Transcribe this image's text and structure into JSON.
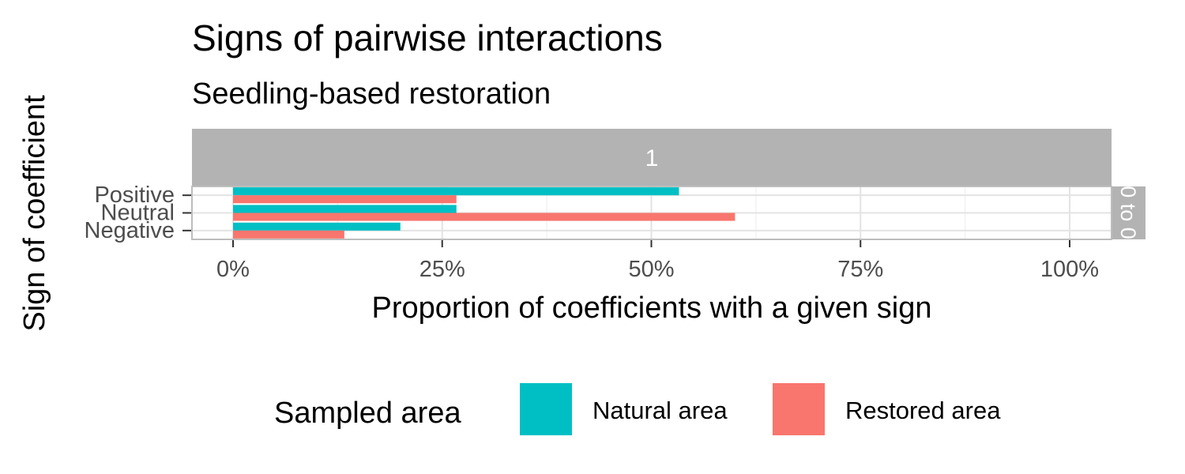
{
  "chart_data": {
    "type": "bar",
    "orientation": "horizontal",
    "title": "Signs of pairwise interactions",
    "subtitle": "Seedling-based restoration",
    "xlabel": "Proportion of coefficients with a given sign",
    "ylabel": "Sign of coefficient",
    "facet_top": "1",
    "facet_right": "0 to 0",
    "categories": [
      "Positive",
      "Neutral",
      "Negative"
    ],
    "xlim": [
      0,
      1
    ],
    "xticks": [
      0,
      0.25,
      0.5,
      0.75,
      1.0
    ],
    "xtick_labels": [
      "0%",
      "25%",
      "50%",
      "75%",
      "100%"
    ],
    "grid": true,
    "series": [
      {
        "name": "Natural area",
        "color": "#00BFC4",
        "values": [
          0.533,
          0.267,
          0.2
        ]
      },
      {
        "name": "Restored area",
        "color": "#F8766D",
        "values": [
          0.267,
          0.6,
          0.133
        ]
      }
    ],
    "legend": {
      "title": "Sampled area",
      "position": "bottom"
    }
  }
}
